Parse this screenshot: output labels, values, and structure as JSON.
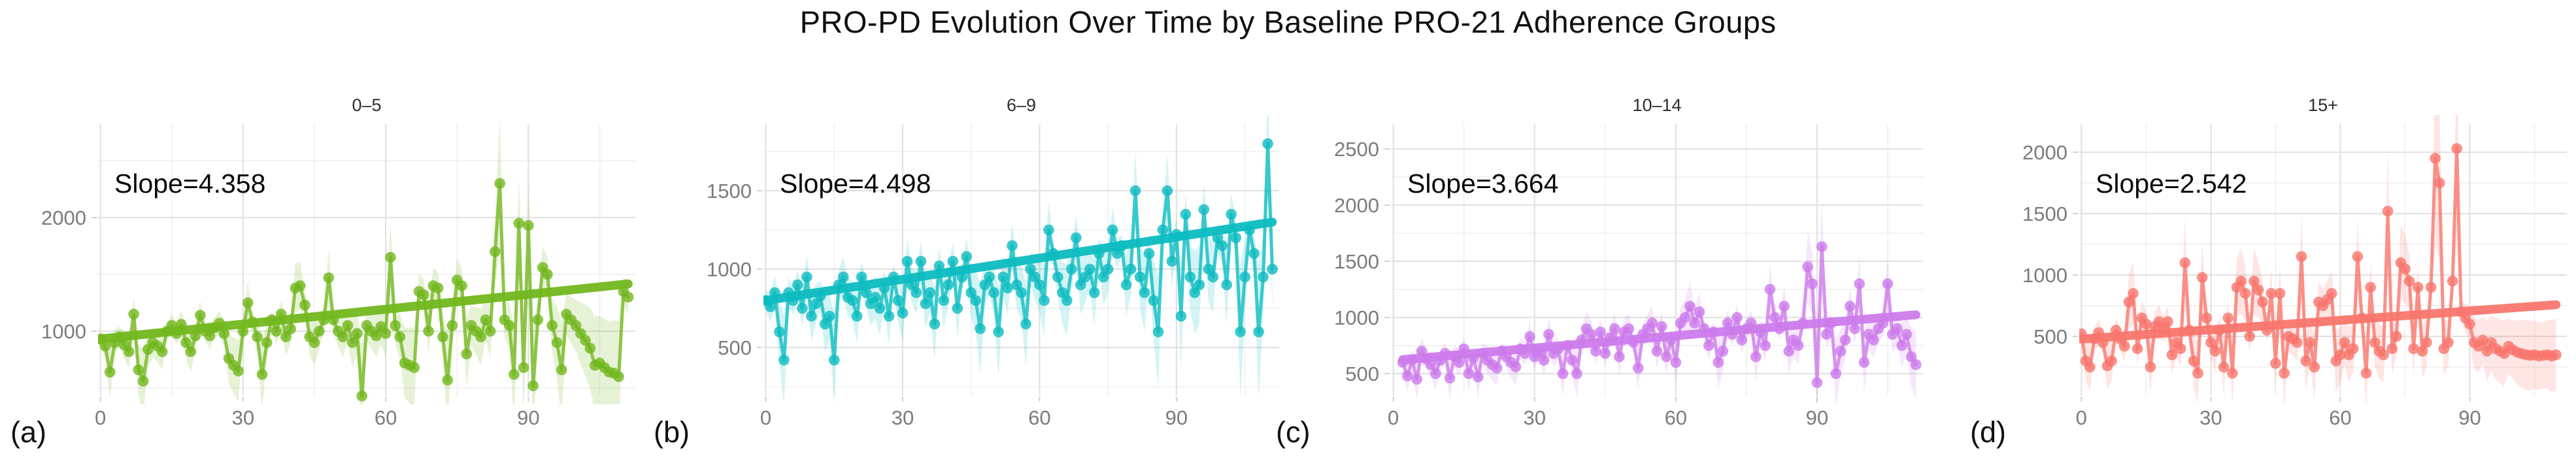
{
  "title": "PRO-PD Evolution Over Time by Baseline PRO-21 Adherence Groups",
  "chart_data": [
    {
      "type": "line",
      "panel_label": "(a)",
      "title": "0–5",
      "slope": 4.358,
      "slope_label": "Slope=4.358",
      "color": "#72B71D",
      "x_ticks": [
        0,
        30,
        60,
        90
      ],
      "x_minor": [
        15,
        45,
        75,
        105
      ],
      "y_ticks": [
        1000,
        2000
      ],
      "y_minor": [
        500,
        1500,
        2500
      ],
      "xlim": [
        -0.5,
        112.5
      ],
      "ylim": [
        437,
        2822
      ],
      "x_start": 0,
      "x_step": 1,
      "y": [
        930,
        870,
        640,
        900,
        950,
        880,
        820,
        1150,
        660,
        560,
        840,
        900,
        870,
        820,
        1000,
        1050,
        980,
        1060,
        900,
        820,
        960,
        1140,
        1000,
        960,
        1030,
        1070,
        980,
        760,
        700,
        650,
        1000,
        1250,
        1080,
        950,
        620,
        900,
        1100,
        1000,
        1150,
        950,
        1020,
        1380,
        1400,
        1230,
        950,
        900,
        1000,
        1100,
        1470,
        1100,
        1000,
        950,
        1050,
        900,
        980,
        430,
        1050,
        1000,
        960,
        1040,
        980,
        1650,
        1050,
        950,
        720,
        700,
        680,
        1350,
        1320,
        1000,
        1400,
        1380,
        950,
        570,
        1050,
        1450,
        1400,
        800,
        1050,
        1000,
        950,
        1100,
        1000,
        1700,
        2300,
        1100,
        1050,
        620,
        1950,
        680,
        1930,
        520,
        1100,
        1560,
        1500,
        1050,
        900,
        660,
        1150,
        1100,
        1050,
        980,
        920,
        850,
        700,
        720,
        680,
        640,
        630,
        600,
        1350,
        1300
      ],
      "trend": {
        "x0": 0,
        "y0": 932,
        "x1": 111,
        "y1": 1416
      }
    },
    {
      "type": "line",
      "panel_label": "(b)",
      "title": "6–9",
      "slope": 4.498,
      "slope_label": "Slope=4.498",
      "color": "#0CBCC0",
      "x_ticks": [
        0,
        30,
        60,
        90
      ],
      "x_minor": [
        15,
        45,
        75,
        105
      ],
      "y_ticks": [
        500,
        1000,
        1500
      ],
      "y_minor": [
        250,
        750,
        1250,
        1750
      ],
      "xlim": [
        -0.5,
        112.5
      ],
      "ylim": [
        196,
        1925
      ],
      "x_start": 0,
      "x_step": 1,
      "y": [
        800,
        760,
        850,
        600,
        420,
        850,
        800,
        900,
        750,
        950,
        700,
        780,
        830,
        650,
        700,
        420,
        900,
        950,
        820,
        800,
        700,
        950,
        850,
        780,
        820,
        750,
        880,
        700,
        950,
        800,
        720,
        1050,
        900,
        850,
        1050,
        780,
        850,
        650,
        1020,
        800,
        900,
        1050,
        750,
        950,
        1080,
        850,
        800,
        620,
        900,
        950,
        850,
        600,
        950,
        880,
        1150,
        900,
        850,
        650,
        1000,
        950,
        900,
        800,
        1250,
        1100,
        950,
        850,
        800,
        1000,
        1200,
        900,
        950,
        1000,
        850,
        1100,
        950,
        1000,
        1250,
        1100,
        1150,
        900,
        1000,
        1500,
        950,
        850,
        1100,
        800,
        600,
        1250,
        1500,
        1050,
        1220,
        700,
        1350,
        950,
        850,
        900,
        1380,
        1000,
        950,
        1200,
        1150,
        900,
        1350,
        1200,
        600,
        950,
        1250,
        1100,
        600,
        950,
        1800,
        1000
      ],
      "trend": {
        "x0": 0,
        "y0": 800,
        "x1": 111,
        "y1": 1300
      }
    },
    {
      "type": "line",
      "panel_label": "(c)",
      "title": "10–14",
      "slope": 3.664,
      "slope_label": "Slope=3.664",
      "color": "#CC7BEB",
      "x_ticks": [
        0,
        30,
        60,
        90
      ],
      "x_minor": [
        15,
        45,
        75,
        105
      ],
      "y_ticks": [
        500,
        1000,
        1500,
        2000,
        2500
      ],
      "y_minor": [
        750,
        1250,
        1750,
        2250
      ],
      "xlim": [
        -0.5,
        112.5
      ],
      "ylim": [
        308,
        2721
      ],
      "x_start": 2,
      "x_step": 1,
      "y": [
        600,
        480,
        620,
        450,
        700,
        630,
        580,
        500,
        620,
        680,
        460,
        650,
        600,
        720,
        500,
        640,
        470,
        680,
        620,
        580,
        550,
        700,
        650,
        600,
        560,
        720,
        680,
        830,
        650,
        700,
        620,
        850,
        680,
        720,
        500,
        750,
        620,
        500,
        800,
        900,
        850,
        700,
        870,
        680,
        820,
        900,
        650,
        870,
        900,
        780,
        550,
        850,
        900,
        950,
        700,
        920,
        650,
        800,
        600,
        950,
        1000,
        1100,
        950,
        1050,
        900,
        750,
        870,
        600,
        700,
        950,
        850,
        1000,
        800,
        900,
        950,
        650,
        870,
        750,
        1250,
        1000,
        900,
        1100,
        700,
        800,
        750,
        950,
        1450,
        1300,
        420,
        1630,
        850,
        950,
        500,
        700,
        800,
        1100,
        900,
        1300,
        600,
        850,
        800,
        900,
        950,
        1300,
        850,
        900,
        750,
        850,
        650,
        580
      ],
      "trend": {
        "x0": 2,
        "y0": 625,
        "x1": 111,
        "y1": 1024
      }
    },
    {
      "type": "line",
      "panel_label": "(d)",
      "title": "15+",
      "slope": 2.542,
      "slope_label": "Slope=2.542",
      "color": "#F8766D",
      "x_ticks": [
        0,
        30,
        60,
        90
      ],
      "x_minor": [
        15,
        45,
        75,
        105
      ],
      "y_ticks": [
        500,
        1000,
        1500,
        2000
      ],
      "y_minor": [
        250,
        750,
        1250,
        1750
      ],
      "xlim": [
        -0.5,
        112.5
      ],
      "ylim": [
        21,
        2229
      ],
      "x_start": 0,
      "x_step": 1,
      "y": [
        520,
        300,
        250,
        480,
        530,
        450,
        260,
        300,
        550,
        480,
        420,
        780,
        850,
        400,
        650,
        600,
        250,
        580,
        620,
        560,
        620,
        350,
        450,
        400,
        1100,
        550,
        300,
        200,
        980,
        650,
        450,
        380,
        550,
        250,
        650,
        200,
        900,
        950,
        850,
        500,
        950,
        880,
        780,
        550,
        850,
        280,
        850,
        200,
        500,
        480,
        450,
        1150,
        300,
        450,
        250,
        780,
        750,
        800,
        850,
        300,
        350,
        450,
        350,
        400,
        1150,
        650,
        200,
        900,
        450,
        380,
        350,
        1520,
        400,
        500,
        1100,
        1050,
        950,
        400,
        900,
        380,
        450,
        900,
        1950,
        1750,
        400,
        450,
        950,
        2030,
        700,
        650,
        600,
        450,
        420,
        470,
        380,
        450,
        400,
        380,
        360,
        420,
        390,
        370,
        360,
        350,
        345,
        350,
        340,
        345,
        350,
        340,
        350
      ],
      "trend": {
        "x0": 0,
        "y0": 478,
        "x1": 110,
        "y1": 758
      }
    }
  ]
}
